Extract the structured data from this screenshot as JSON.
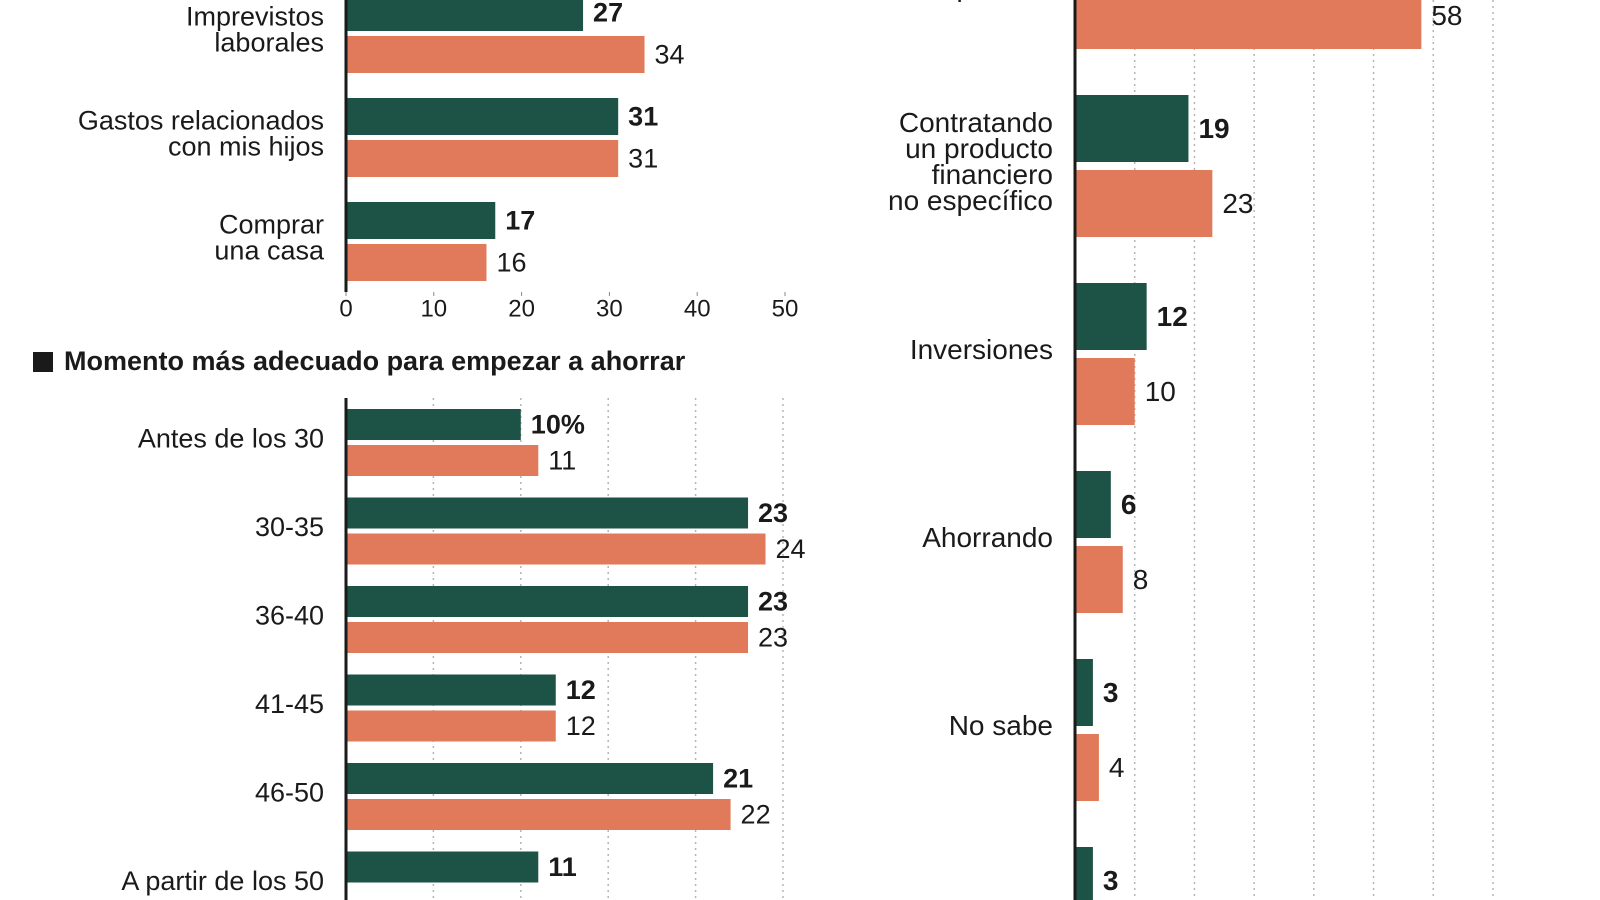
{
  "chart_data": [
    {
      "type": "bar",
      "orientation": "horizontal",
      "categories": [
        "Imprevistos\nlaborales",
        "Gastos relacionados\ncon mis hijos",
        "Comprar\nuna casa"
      ],
      "series": [
        {
          "color": "#1d5246",
          "values": [
            27,
            31,
            17
          ]
        },
        {
          "color": "#e07a5a",
          "values": [
            34,
            31,
            16
          ]
        }
      ],
      "xlim": [
        0,
        50
      ],
      "xticks": [
        0,
        10,
        20,
        30,
        40,
        50
      ]
    },
    {
      "type": "bar",
      "orientation": "horizontal",
      "title": "Momento más adecuado para empezar a ahorrar",
      "categories": [
        "Antes de los 30",
        "30-35",
        "36-40",
        "41-45",
        "46-50",
        "A partir de los 50"
      ],
      "series": [
        {
          "color": "#1d5246",
          "values": [
            10,
            23,
            23,
            12,
            21,
            11
          ],
          "value_labels": [
            "10%",
            "23",
            "23",
            "12",
            "21",
            "11"
          ]
        },
        {
          "color": "#e07a5a",
          "values": [
            11,
            24,
            23,
            12,
            22,
            null
          ]
        }
      ],
      "xlim": [
        0,
        25
      ],
      "xgrid": [
        5,
        10,
        15,
        20,
        25
      ]
    },
    {
      "type": "bar",
      "orientation": "horizontal",
      "categories": [
        "financiero\nespecífico",
        "Contratando\nun producto\nfinanciero\nno específico",
        "Inversiones",
        "Ahorrando",
        "No sabe",
        null
      ],
      "series": [
        {
          "color": "#1d5246",
          "values": [
            null,
            19,
            12,
            6,
            3,
            3
          ]
        },
        {
          "color": "#e07a5a",
          "values": [
            58,
            23,
            10,
            8,
            4,
            null
          ]
        }
      ],
      "xlim": [
        0,
        70
      ],
      "xgrid": [
        10,
        20,
        30,
        40,
        50,
        60,
        70
      ]
    }
  ]
}
